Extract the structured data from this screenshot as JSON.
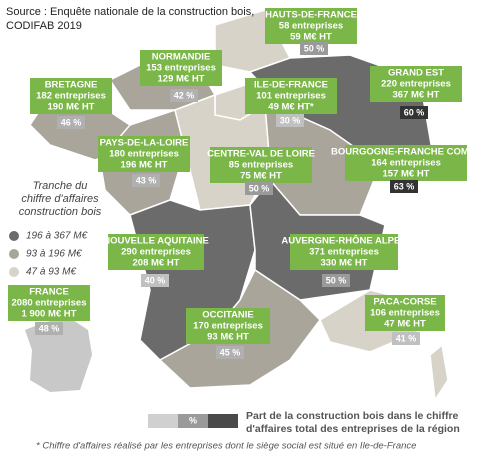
{
  "source": [
    "Source  : Enquête nationale de la construction bois,",
    "CODIFAB 2019"
  ],
  "legend": {
    "title": [
      "Tranche du",
      "chiffre d'affaires",
      "construction bois"
    ],
    "items": [
      "196 à 367 M€",
      "93 à 196 M€",
      "47 à 93 M€"
    ]
  },
  "regions": [
    {
      "name": "HAUTS-DE-FRANCE",
      "companies": "58 entreprises",
      "revenue": "59 M€ HT",
      "share": "50 %"
    },
    {
      "name": "NORMANDIE",
      "companies": "153 entreprises",
      "revenue": "129 M€ HT",
      "share": "42 %"
    },
    {
      "name": "BRETAGNE",
      "companies": "182 entreprises",
      "revenue": "190 M€ HT",
      "share": "46 %"
    },
    {
      "name": "ILE-DE-FRANCE",
      "companies": "101 entreprises",
      "revenue": "49 M€ HT*",
      "share": "30 %"
    },
    {
      "name": "GRAND EST",
      "companies": "220 entreprises",
      "revenue": "367 M€ HT",
      "share": "60 %"
    },
    {
      "name": "PAYS-DE-LA-LOIRE",
      "companies": "180 entreprises",
      "revenue": "196 M€ HT",
      "share": "43 %"
    },
    {
      "name": "CENTRE-VAL DE LOIRE",
      "companies": "85 entreprises",
      "revenue": "75 M€ HT",
      "share": "50 %"
    },
    {
      "name": "BOURGOGNE-FRANCHE COMTÉ",
      "companies": "164 entreprises",
      "revenue": "157 M€ HT",
      "share": "63 %"
    },
    {
      "name": "NOUVELLE AQUITAINE",
      "companies": "290 entreprises",
      "revenue": "208 M€ HT",
      "share": "40 %"
    },
    {
      "name": "AUVERGNE-RHÔNE ALPES",
      "companies": "371 entreprises",
      "revenue": "330 M€ HT",
      "share": "50 %"
    },
    {
      "name": "OCCITANIE",
      "companies": "170 entreprises",
      "revenue": "93 M€ HT",
      "share": "45 %"
    },
    {
      "name": "PACA-CORSE",
      "companies": "106 entreprises",
      "revenue": "47 M€ HT",
      "share": "41 %"
    },
    {
      "name": "FRANCE",
      "companies": "2080 entreprises",
      "revenue": "1 900 M€ HT",
      "share": "48 %"
    }
  ],
  "share_legend": {
    "symbol": "%",
    "text": [
      "Part de la construction bois dans le chiffre",
      "d'affaires total des entreprises de la région"
    ]
  },
  "footnote": "* Chiffre d'affaires réalisé par les entreprises dont le siège social est situé en Ile-de-France"
}
